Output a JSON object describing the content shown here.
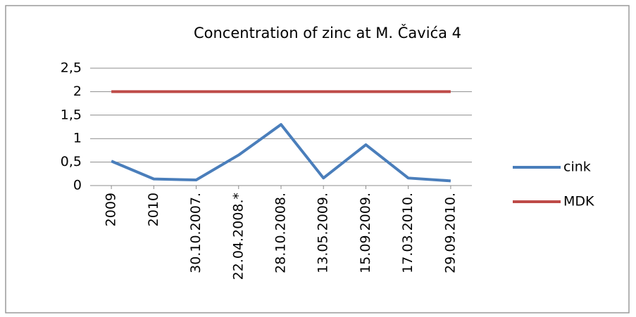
{
  "chart_data": {
    "type": "line",
    "title": "Concentration of zinc at M. Čavića 4",
    "categories": [
      "2009",
      "2010",
      "30.10.2007.",
      "22.04.2008.*",
      "28.10.2008.",
      "13.05.2009.",
      "15.09.2009.",
      "17.03.2010.",
      "29.09.2010."
    ],
    "series": [
      {
        "name": "cink",
        "color": "#4a7ebb",
        "values": [
          0.52,
          0.14,
          0.12,
          0.65,
          1.3,
          0.16,
          0.87,
          0.16,
          0.1
        ]
      },
      {
        "name": "MDK",
        "color": "#be4b48",
        "values": [
          2,
          2,
          2,
          2,
          2,
          2,
          2,
          2,
          2
        ]
      }
    ],
    "ylim": [
      0,
      2.5
    ],
    "yticks": [
      0,
      {
        "value": 0.5,
        "label": "0,5"
      },
      1,
      {
        "value": 1.5,
        "label": "1,5"
      },
      2,
      {
        "value": 2.5,
        "label": "2,5"
      }
    ],
    "grid": true,
    "legend": "right"
  }
}
